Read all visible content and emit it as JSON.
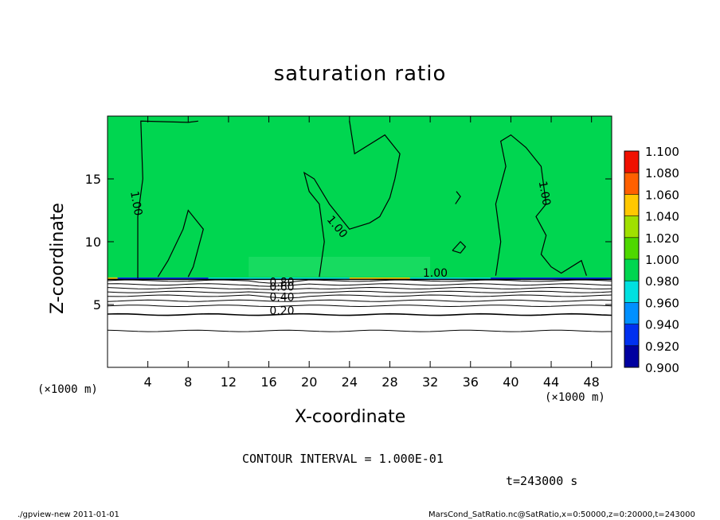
{
  "chart_data": {
    "type": "heatmap",
    "title": "saturation ratio",
    "xlabel": "X-coordinate",
    "ylabel": "Z-coordinate",
    "x_unit_left": "(×1000 m)",
    "x_unit_right": "(×1000 m)",
    "xlim": [
      0,
      50
    ],
    "ylim": [
      0,
      20
    ],
    "x_ticks": [
      4,
      8,
      12,
      16,
      20,
      24,
      28,
      32,
      36,
      40,
      44,
      48
    ],
    "y_ticks": [
      5,
      10,
      15
    ],
    "colorbar": {
      "levels": [
        "0.900",
        "0.920",
        "0.940",
        "0.960",
        "0.980",
        "1.000",
        "1.020",
        "1.040",
        "1.060",
        "1.080",
        "1.100"
      ],
      "colors": [
        "#7a0cc0",
        "#0000a0",
        "#0030f0",
        "#0090ff",
        "#00e0e0",
        "#00d650",
        "#4ed800",
        "#a0e000",
        "#ffc800",
        "#ff6000",
        "#f01000",
        "#ff9090"
      ]
    },
    "contour_labels": [
      {
        "text": "1.00",
        "x": 2.5,
        "z": 13.0
      },
      {
        "text": "1.00",
        "x": 22.5,
        "z": 11.0
      },
      {
        "text": "1.00",
        "x": 43.0,
        "z": 13.8
      },
      {
        "text": "1.00",
        "x": 32.5,
        "z": 7.2
      },
      {
        "text": "0.80",
        "x": 17.3,
        "z": 6.5
      },
      {
        "text": "0.60",
        "x": 17.3,
        "z": 6.1
      },
      {
        "text": "0.40",
        "x": 17.3,
        "z": 5.3
      },
      {
        "text": "0.20",
        "x": 17.3,
        "z": 4.2
      }
    ],
    "grid": false,
    "legend": "right"
  },
  "contour_interval": "CONTOUR INTERVAL = 1.000E-01",
  "time_label": "t=243000 s",
  "footer_left": "./gpview-new   2011-01-01",
  "footer_right": "MarsCond_SatRatio.nc@SatRatio,x=0:50000,z=0:20000,t=243000"
}
